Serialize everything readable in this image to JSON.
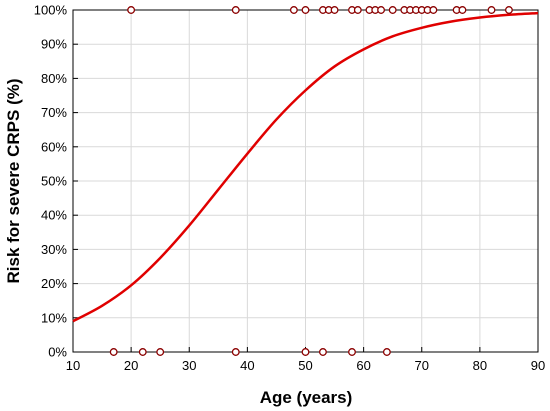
{
  "chart_data": {
    "type": "scatter",
    "title": "",
    "xlabel": "Age (years)",
    "ylabel": "Risk for severe CRPS (%)",
    "xlim": [
      10,
      90
    ],
    "ylim": [
      0,
      100
    ],
    "x_ticks": [
      10,
      20,
      30,
      40,
      50,
      60,
      70,
      80,
      90
    ],
    "y_ticks": [
      0,
      10,
      20,
      30,
      40,
      50,
      60,
      70,
      80,
      90,
      100
    ],
    "y_tick_labels": [
      "0%",
      "10%",
      "20%",
      "30%",
      "40%",
      "50%",
      "60%",
      "70%",
      "80%",
      "90%",
      "100%"
    ],
    "grid": true,
    "legend": "none",
    "colors": {
      "curve": "#e00000",
      "points": "#8b0000",
      "grid": "#d9d9d9"
    },
    "series": [
      {
        "kind": "points",
        "x": [
          20,
          38,
          48,
          50,
          53,
          54,
          55,
          58,
          59,
          61,
          62,
          63,
          65,
          67,
          68,
          69,
          70,
          71,
          72,
          76,
          77,
          82,
          85,
          17,
          22,
          25,
          38,
          50,
          53,
          58,
          64
        ],
        "y": [
          100,
          100,
          100,
          100,
          100,
          100,
          100,
          100,
          100,
          100,
          100,
          100,
          100,
          100,
          100,
          100,
          100,
          100,
          100,
          100,
          100,
          100,
          100,
          0,
          0,
          0,
          0,
          0,
          0,
          0,
          0
        ]
      },
      {
        "kind": "fitted-curve",
        "x": [
          10,
          15,
          20,
          25,
          30,
          35,
          40,
          45,
          50,
          55,
          60,
          65,
          70,
          75,
          80,
          85,
          90
        ],
        "y": [
          9,
          13.5,
          19.5,
          27.5,
          37,
          47.5,
          58,
          68,
          76.5,
          83.5,
          88.5,
          92.3,
          94.8,
          96.6,
          97.8,
          98.6,
          99.1
        ]
      }
    ]
  }
}
